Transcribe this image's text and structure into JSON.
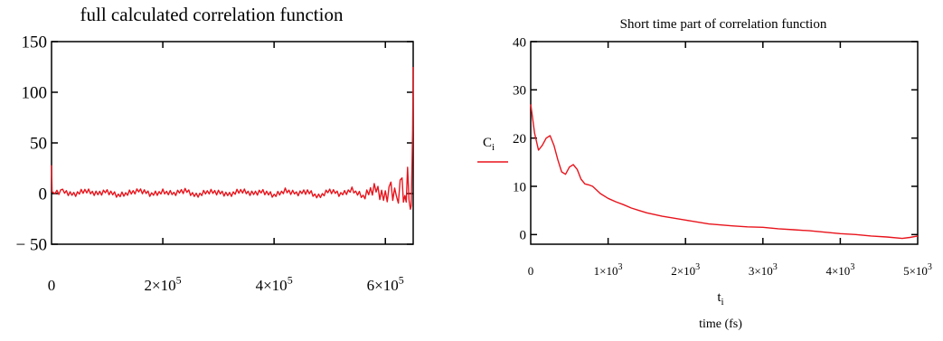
{
  "chart_data": [
    {
      "type": "line",
      "title": "full calculated correlation function",
      "xlabel": "",
      "ylabel": "",
      "xlim": [
        0,
        650000
      ],
      "ylim": [
        -50,
        150
      ],
      "grid": false,
      "yticks": [
        {
          "value": 150,
          "label": "150"
        },
        {
          "value": 100,
          "label": "100"
        },
        {
          "value": 50,
          "label": "50"
        },
        {
          "value": 0,
          "label": "0"
        },
        {
          "value": -50,
          "label": "− 50"
        }
      ],
      "xticks": [
        {
          "value": 0,
          "base": "0",
          "exp": ""
        },
        {
          "value": 200000,
          "base": "2×10",
          "exp": "5"
        },
        {
          "value": 400000,
          "base": "4×10",
          "exp": "5"
        },
        {
          "value": 600000,
          "base": "6×10",
          "exp": "5"
        }
      ],
      "series": [
        {
          "color": "#e8141c",
          "x": [
            0,
            1000,
            3000,
            20000,
            40000,
            60000,
            80000,
            100000,
            120000,
            140000,
            160000,
            180000,
            200000,
            220000,
            240000,
            260000,
            280000,
            300000,
            320000,
            340000,
            360000,
            380000,
            400000,
            420000,
            440000,
            460000,
            480000,
            500000,
            520000,
            540000,
            560000,
            580000,
            600000,
            610000,
            620000,
            630000,
            635000,
            640000,
            645000,
            648000,
            650000
          ],
          "y": [
            28,
            2,
            1,
            2,
            -1,
            3,
            0,
            2,
            -2,
            1,
            3,
            -1,
            2,
            0,
            3,
            -2,
            2,
            1,
            -1,
            3,
            0,
            2,
            -2,
            3,
            0,
            2,
            -3,
            3,
            -1,
            4,
            -3,
            5,
            -4,
            6,
            -6,
            8,
            -10,
            15,
            -20,
            20,
            125
          ]
        }
      ]
    },
    {
      "type": "line",
      "title": "Short time part of correlation function",
      "xlabel": "time (fs)",
      "ylabel": "",
      "xlim": [
        0,
        5000
      ],
      "ylim": [
        -2,
        40
      ],
      "grid": false,
      "yticks": [
        {
          "value": 40,
          "label": "40"
        },
        {
          "value": 30,
          "label": "30"
        },
        {
          "value": 20,
          "label": "20"
        },
        {
          "value": 10,
          "label": "10"
        },
        {
          "value": 0,
          "label": "0"
        }
      ],
      "xticks": [
        {
          "value": 0,
          "base": "0",
          "exp": ""
        },
        {
          "value": 1000,
          "base": "1×10",
          "exp": "3"
        },
        {
          "value": 2000,
          "base": "2×10",
          "exp": "3"
        },
        {
          "value": 3000,
          "base": "3×10",
          "exp": "3"
        },
        {
          "value": 4000,
          "base": "4×10",
          "exp": "3"
        },
        {
          "value": 5000,
          "base": "5×10",
          "exp": "3"
        }
      ],
      "x_var": {
        "base": "t",
        "sub": "i"
      },
      "legend": {
        "base": "C",
        "sub": "i",
        "placement": "left"
      },
      "series": [
        {
          "name": "Ci",
          "color": "#e8141c",
          "x": [
            0,
            50,
            100,
            150,
            200,
            250,
            300,
            350,
            400,
            450,
            500,
            550,
            600,
            650,
            700,
            750,
            800,
            900,
            1000,
            1100,
            1200,
            1300,
            1400,
            1500,
            1700,
            2000,
            2300,
            2600,
            2800,
            3000,
            3200,
            3400,
            3600,
            3800,
            4000,
            4200,
            4400,
            4600,
            4800,
            4900,
            5000
          ],
          "y": [
            27,
            21,
            17.5,
            18.5,
            20,
            20.5,
            18.5,
            15.5,
            13,
            12.5,
            14,
            14.5,
            13.5,
            11.5,
            10.5,
            10.3,
            10,
            8.5,
            7.5,
            6.8,
            6.2,
            5.5,
            5,
            4.5,
            3.8,
            3,
            2.2,
            1.8,
            1.6,
            1.5,
            1.2,
            1,
            0.8,
            0.5,
            0.2,
            0,
            -0.3,
            -0.5,
            -0.8,
            -0.6,
            -0.3
          ]
        }
      ]
    }
  ]
}
